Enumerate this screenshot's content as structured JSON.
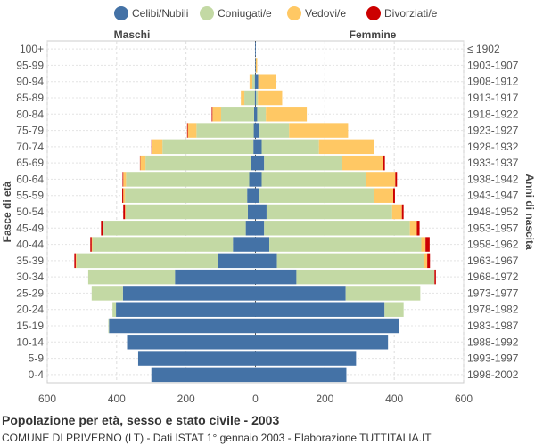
{
  "chart_data": {
    "type": "population-pyramid",
    "title": "Popolazione per età, sesso e stato civile - 2003",
    "subtitle": "COMUNE DI PRIVERNO (LT) - Dati ISTAT 1° gennaio 2003 - Elaborazione TUTTITALIA.IT",
    "left_label": "Maschi",
    "right_label": "Femmine",
    "ylabel_left": "Fasce di età",
    "ylabel_right": "Anni di nascita",
    "xlim": [
      -600,
      600
    ],
    "xticks": [
      -600,
      -400,
      -200,
      0,
      200,
      400,
      600
    ],
    "xtick_labels": [
      "600",
      "400",
      "200",
      "0",
      "200",
      "400",
      "600"
    ],
    "legend_position": "top",
    "grid": true,
    "categories": [
      "Celibi/Nubili",
      "Coniugati/e",
      "Vedovi/e",
      "Divorziati/e"
    ],
    "colors": [
      "#4472a6",
      "#c3d9a4",
      "#ffc864",
      "#cc0000"
    ],
    "age_groups": [
      "100+",
      "95-99",
      "90-94",
      "85-89",
      "80-84",
      "75-79",
      "70-74",
      "65-69",
      "60-64",
      "55-59",
      "50-54",
      "45-49",
      "40-44",
      "35-39",
      "30-34",
      "25-29",
      "20-24",
      "15-19",
      "10-14",
      "5-9",
      "0-4"
    ],
    "birth_years": [
      "≤ 1902",
      "1903-1907",
      "1908-1912",
      "1913-1917",
      "1918-1922",
      "1923-1927",
      "1928-1932",
      "1933-1937",
      "1938-1942",
      "1943-1947",
      "1948-1952",
      "1953-1957",
      "1958-1962",
      "1963-1967",
      "1968-1972",
      "1973-1977",
      "1978-1982",
      "1983-1987",
      "1988-1992",
      "1993-1997",
      "1998-2002"
    ],
    "males": {
      "Celibi/Nubili": [
        1,
        1,
        2,
        2,
        4,
        5,
        6,
        12,
        18,
        24,
        22,
        28,
        65,
        108,
        232,
        382,
        402,
        422,
        370,
        338,
        300
      ],
      "Coniugati/e": [
        0,
        0,
        7,
        30,
        95,
        165,
        262,
        305,
        355,
        352,
        352,
        410,
        405,
        408,
        250,
        90,
        10,
        2,
        0,
        0,
        0
      ],
      "Vedovi/e": [
        0,
        0,
        8,
        10,
        25,
        25,
        30,
        15,
        8,
        5,
        2,
        2,
        2,
        2,
        0,
        0,
        0,
        0,
        0,
        0,
        0
      ],
      "Divorziati/e": [
        0,
        0,
        0,
        0,
        2,
        2,
        2,
        1,
        2,
        3,
        5,
        5,
        4,
        4,
        0,
        0,
        0,
        0,
        0,
        0,
        0
      ]
    },
    "females": {
      "Celibi/Nubili": [
        1,
        1,
        8,
        2,
        5,
        12,
        18,
        25,
        18,
        12,
        32,
        25,
        40,
        62,
        118,
        260,
        372,
        415,
        382,
        290,
        262
      ],
      "Coniugati/e": [
        0,
        0,
        0,
        5,
        25,
        85,
        165,
        225,
        300,
        330,
        362,
        420,
        438,
        425,
        398,
        215,
        55,
        0,
        0,
        0,
        0
      ],
      "Vedovi/e": [
        0,
        4,
        50,
        70,
        118,
        170,
        160,
        118,
        85,
        55,
        28,
        20,
        12,
        8,
        0,
        0,
        0,
        0,
        0,
        0,
        0
      ],
      "Divorziati/e": [
        0,
        0,
        0,
        0,
        0,
        0,
        0,
        5,
        5,
        5,
        5,
        8,
        12,
        8,
        4,
        0,
        0,
        0,
        0,
        0,
        0
      ]
    }
  }
}
